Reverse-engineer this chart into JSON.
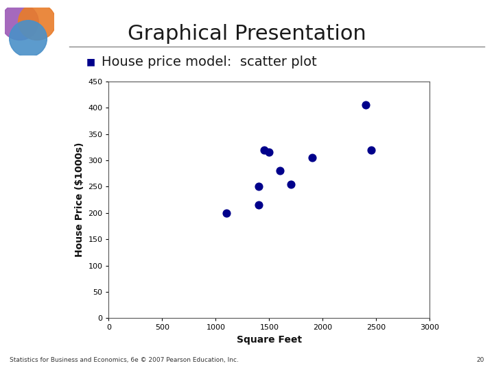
{
  "title": "Graphical Presentation",
  "subtitle": "House price model:  scatter plot",
  "xlabel": "Square Feet",
  "ylabel": "House Price ($1000s)",
  "x_data": [
    1100,
    1400,
    1400,
    1450,
    1500,
    1600,
    1700,
    1900,
    2400,
    2450
  ],
  "y_data": [
    200,
    250,
    215,
    320,
    315,
    280,
    255,
    305,
    405,
    320
  ],
  "dot_color": "#00008B",
  "xlim": [
    0,
    3000
  ],
  "ylim": [
    0,
    450
  ],
  "xticks": [
    0,
    500,
    1000,
    1500,
    2000,
    2500,
    3000
  ],
  "yticks": [
    0,
    50,
    100,
    150,
    200,
    250,
    300,
    350,
    400,
    450
  ],
  "background_color": "#ffffff",
  "title_fontsize": 22,
  "subtitle_fontsize": 14,
  "axis_label_fontsize": 10,
  "tick_fontsize": 8,
  "footer_text": "Statistics for Business and Economics, 6e © 2007 Pearson Education, Inc.",
  "footer_page": "20",
  "marker_size": 60,
  "logo_circle1_color": "#9B59B6",
  "logo_circle2_color": "#E87C2A",
  "logo_circle3_color": "#4A90C8",
  "bullet_color": "#00008B",
  "title_color": "#1a1a1a",
  "subtitle_color": "#1a1a1a",
  "line_color": "#888888"
}
